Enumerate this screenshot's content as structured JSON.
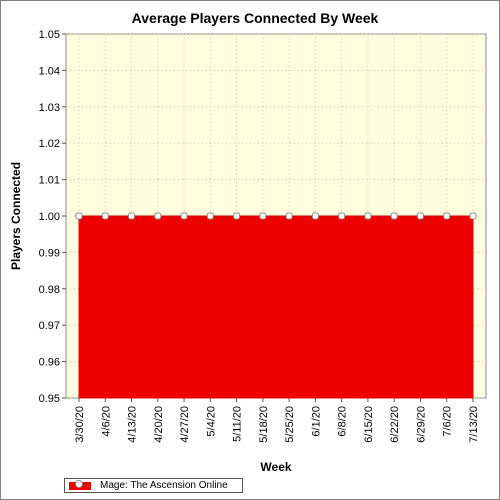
{
  "chart_data": {
    "type": "area",
    "title": "Average Players Connected By Week",
    "xlabel": "Week",
    "ylabel": "Players Connected",
    "categories": [
      "3/30/20",
      "4/6/20",
      "4/13/20",
      "4/20/20",
      "4/27/20",
      "5/4/20",
      "5/11/20",
      "5/18/20",
      "5/25/20",
      "6/1/20",
      "6/8/20",
      "6/15/20",
      "6/22/20",
      "6/29/20",
      "7/6/20",
      "7/13/20"
    ],
    "series": [
      {
        "name": "Mage: The Ascension Online",
        "values": [
          1.0,
          1.0,
          1.0,
          1.0,
          1.0,
          1.0,
          1.0,
          1.0,
          1.0,
          1.0,
          1.0,
          1.0,
          1.0,
          1.0,
          1.0,
          1.0
        ]
      }
    ],
    "ylim": [
      0.95,
      1.05
    ],
    "yticks": [
      "0.95",
      "0.96",
      "0.97",
      "0.98",
      "0.99",
      "1.00",
      "1.01",
      "1.02",
      "1.03",
      "1.04",
      "1.05"
    ],
    "grid": true,
    "legend_position": "bottom-left",
    "colors": {
      "plot_background": "#ffffe0",
      "series_fill": "#ee0000",
      "marker_fill": "#ffffff",
      "grid": "#c8c8a0"
    }
  }
}
